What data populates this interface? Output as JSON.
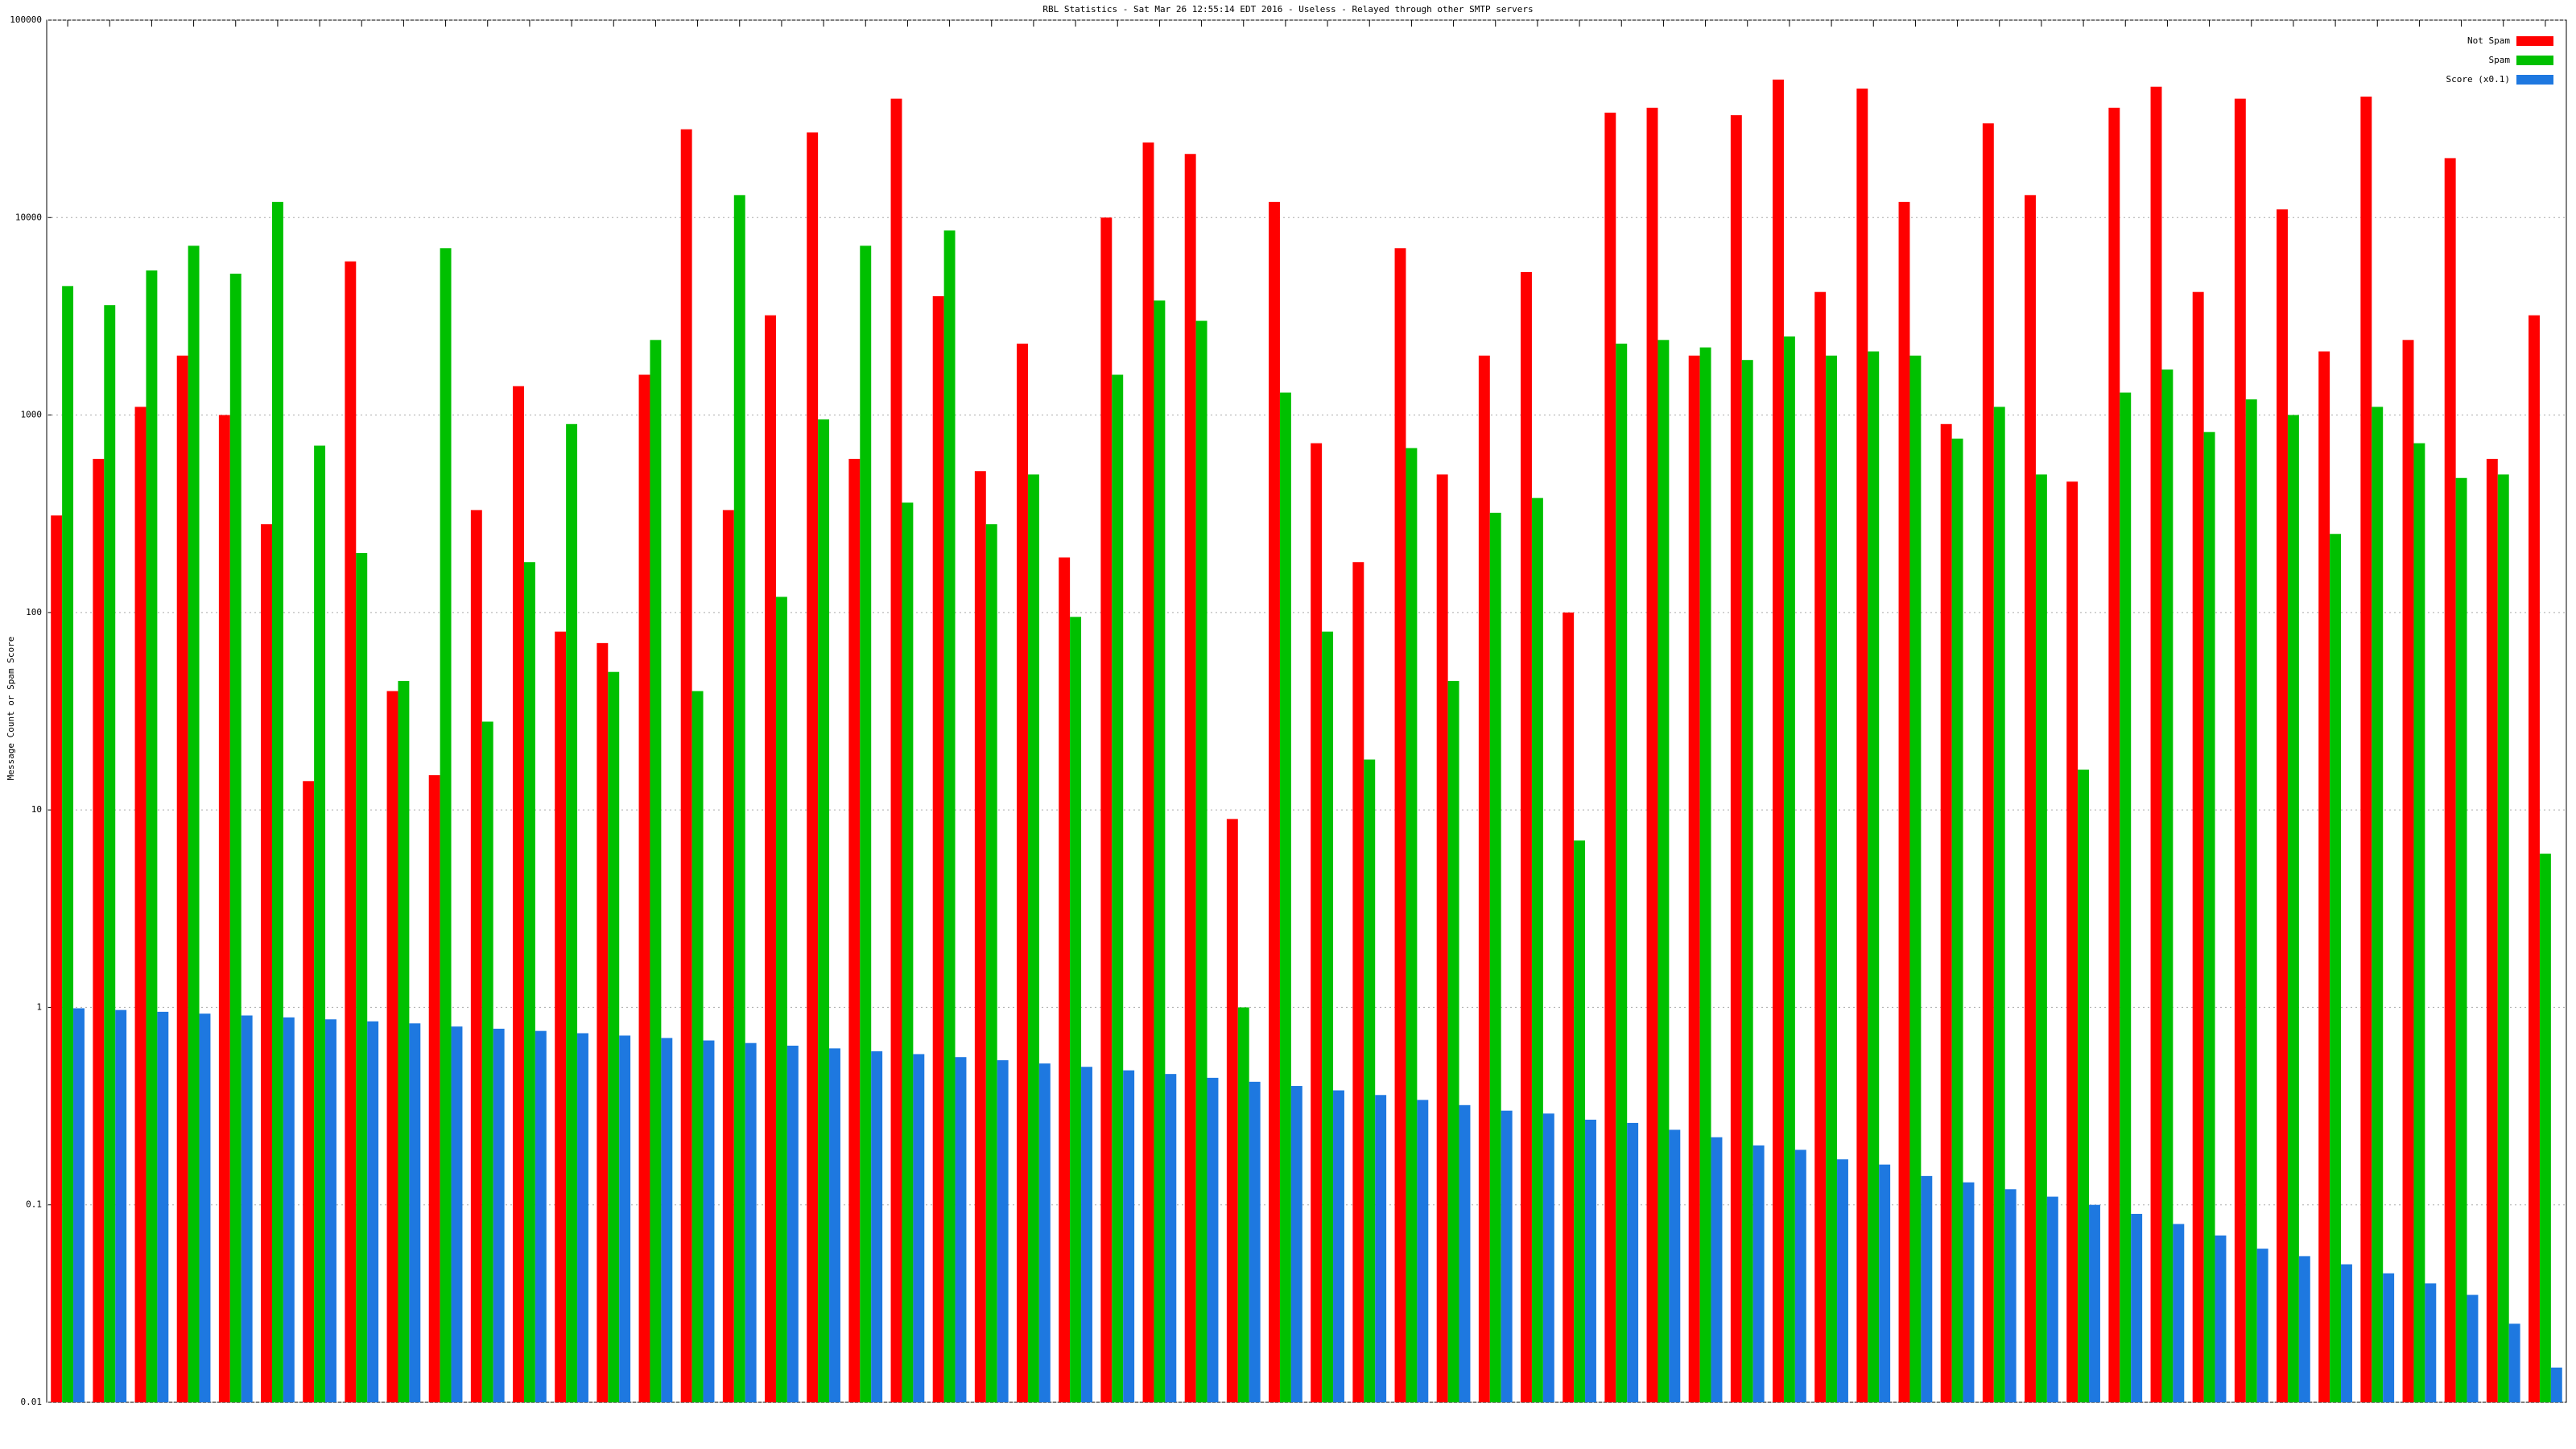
{
  "chart_data": {
    "type": "bar",
    "title": "RBL Statistics - Sat Mar 26 12:55:14 EDT 2016 - Useless - Relayed through other SMTP servers",
    "y_label": "Message Count or Spam Score",
    "log_scale": true,
    "grid": true,
    "legend": "top-right",
    "categories": [
      null,
      null,
      null,
      null,
      null,
      null,
      null,
      null,
      null,
      null,
      null,
      null,
      null,
      null,
      null,
      null,
      null,
      null,
      null,
      null,
      null,
      null,
      null,
      null,
      null,
      null,
      null,
      null,
      null,
      null,
      null,
      null,
      null,
      null,
      null,
      null,
      null,
      null,
      null,
      null,
      null,
      null,
      null,
      null,
      null,
      null,
      null,
      null,
      null,
      null,
      null,
      null,
      null,
      null,
      null,
      null,
      null,
      null,
      null,
      null
    ],
    "ylim": [
      0.01,
      100000
    ],
    "yticks": [
      0.01,
      0.1,
      1,
      10,
      100,
      1000,
      10000,
      100000
    ],
    "series": [
      {
        "name": "Not Spam",
        "color": "#ff0000",
        "values": [
          310,
          600,
          1100,
          2000,
          1000,
          280,
          14,
          6000,
          40,
          15,
          330,
          1400,
          80,
          70,
          1600,
          28000,
          330,
          3200,
          27000,
          600,
          40000,
          4000,
          520,
          2300,
          190,
          10000,
          24000,
          21000,
          9,
          12000,
          720,
          180,
          7000,
          500,
          2000,
          5300,
          100,
          34000,
          36000,
          2000,
          33000,
          50000,
          4200,
          45000,
          12000,
          900,
          30000,
          13000,
          460,
          36000,
          46000,
          4200,
          40000,
          11000,
          2100,
          41000,
          2400,
          20000,
          600,
          3200
        ]
      },
      {
        "name": "Spam",
        "color": "#00c000",
        "values": [
          4500,
          3600,
          5400,
          7200,
          5200,
          12000,
          700,
          200,
          45,
          7000,
          28,
          180,
          900,
          50,
          2400,
          40,
          13000,
          120,
          950,
          7200,
          360,
          8600,
          280,
          500,
          95,
          1600,
          3800,
          3000,
          1,
          1300,
          80,
          18,
          680,
          45,
          320,
          380,
          7,
          2300,
          2400,
          2200,
          1900,
          2500,
          2000,
          2100,
          2000,
          760,
          1100,
          500,
          16,
          1300,
          1700,
          820,
          1200,
          1000,
          250,
          1100,
          720,
          480,
          500,
          6
        ]
      },
      {
        "name": "Score (x0.1)",
        "color": "#1e78e0",
        "values": [
          0.99,
          0.97,
          0.95,
          0.93,
          0.91,
          0.89,
          0.87,
          0.85,
          0.83,
          0.8,
          0.78,
          0.76,
          0.74,
          0.72,
          0.7,
          0.68,
          0.66,
          0.64,
          0.62,
          0.6,
          0.58,
          0.56,
          0.54,
          0.52,
          0.5,
          0.48,
          0.46,
          0.44,
          0.42,
          0.4,
          0.38,
          0.36,
          0.34,
          0.32,
          0.3,
          0.29,
          0.27,
          0.26,
          0.24,
          0.22,
          0.2,
          0.19,
          0.17,
          0.16,
          0.14,
          0.13,
          0.12,
          0.11,
          0.1,
          0.09,
          0.08,
          0.07,
          0.06,
          0.055,
          0.05,
          0.045,
          0.04,
          0.035,
          0.025,
          0.015
        ]
      }
    ]
  }
}
